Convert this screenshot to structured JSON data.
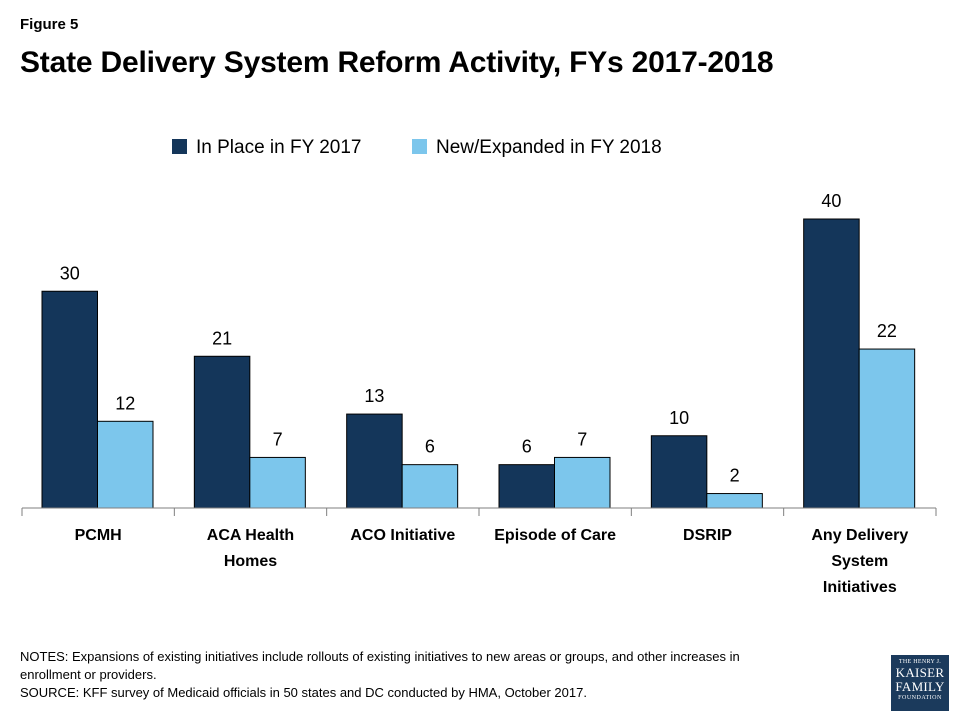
{
  "figure_label": "Figure 5",
  "notes": [
    "NOTES: Expansions of existing initiatives include rollouts of existing initiatives to new areas or groups, and other increases in",
    "enrollment  or providers.",
    "SOURCE: KFF survey of Medicaid officials in 50 states and DC conducted by HMA, October 2017."
  ],
  "logo": {
    "line1": "THE HENRY J.",
    "line2": "KAISER",
    "line3": "FAMILY",
    "line4": "FOUNDATION"
  },
  "colors": {
    "series_2017": "#14365a",
    "series_2018": "#7cc6ec",
    "axis": "#7f7f7f",
    "logo_bg": "#1b3a5c"
  },
  "chart_data": {
    "type": "bar",
    "title": "State Delivery System Reform Activity, FYs 2017-2018",
    "xlabel": "",
    "ylabel": "",
    "ylim": [
      0,
      40
    ],
    "grid": false,
    "legend_position": "top",
    "categories": [
      [
        "PCMH"
      ],
      [
        "ACA Health",
        "Homes"
      ],
      [
        "ACO Initiative"
      ],
      [
        "Episode of Care"
      ],
      [
        "DSRIP"
      ],
      [
        "Any Delivery",
        "System",
        "Initiatives"
      ]
    ],
    "series": [
      {
        "name": "In Place in FY 2017",
        "values": [
          30,
          21,
          13,
          6,
          10,
          40
        ]
      },
      {
        "name": "New/Expanded in FY 2018",
        "values": [
          12,
          7,
          6,
          7,
          2,
          22
        ]
      }
    ]
  }
}
